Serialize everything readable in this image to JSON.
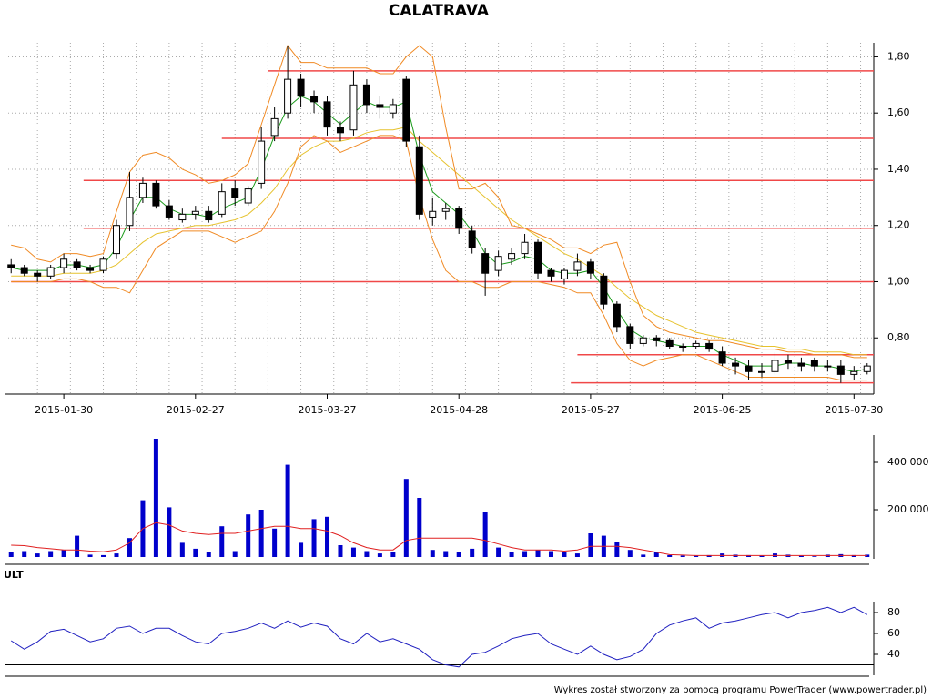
{
  "chart_data": [
    {
      "type": "candlestick",
      "title": "CALATRAVA",
      "categories": [
        null,
        null,
        null,
        null,
        "2015-01-30",
        null,
        null,
        null,
        null,
        null,
        null,
        null,
        null,
        null,
        "2015-02-27",
        null,
        null,
        null,
        null,
        null,
        null,
        null,
        null,
        null,
        "2015-03-27",
        null,
        null,
        null,
        null,
        null,
        null,
        null,
        null,
        null,
        "2015-04-28",
        null,
        null,
        null,
        null,
        null,
        null,
        null,
        null,
        null,
        "2015-05-27",
        null,
        null,
        null,
        null,
        null,
        null,
        null,
        null,
        null,
        "2015-06-25",
        null,
        null,
        null,
        null,
        null,
        null,
        null,
        null,
        null,
        "2015-07-30",
        null
      ],
      "open": [
        1.06,
        1.05,
        1.03,
        1.02,
        1.05,
        1.07,
        1.05,
        1.04,
        1.1,
        1.2,
        1.3,
        1.35,
        1.27,
        1.22,
        1.24,
        1.25,
        1.24,
        1.33,
        1.28,
        1.35,
        1.52,
        1.6,
        1.72,
        1.66,
        1.64,
        1.55,
        1.54,
        1.7,
        1.63,
        1.6,
        1.72,
        1.48,
        1.23,
        1.25,
        1.26,
        1.18,
        1.1,
        1.04,
        1.08,
        1.1,
        1.14,
        1.04,
        1.01,
        1.04,
        1.07,
        1.02,
        0.92,
        0.84,
        0.78,
        0.8,
        0.79,
        0.77,
        0.77,
        0.78,
        0.75,
        0.71,
        0.7,
        0.68,
        0.68,
        0.72,
        0.71,
        0.72,
        0.7,
        0.7,
        0.67,
        0.68
      ],
      "high": [
        1.08,
        1.06,
        1.04,
        1.06,
        1.1,
        1.08,
        1.06,
        1.09,
        1.22,
        1.39,
        1.37,
        1.36,
        1.29,
        1.26,
        1.27,
        1.27,
        1.35,
        1.36,
        1.34,
        1.55,
        1.62,
        1.84,
        1.74,
        1.68,
        1.66,
        1.57,
        1.75,
        1.72,
        1.66,
        1.65,
        1.73,
        1.52,
        1.3,
        1.28,
        1.27,
        1.2,
        1.12,
        1.11,
        1.12,
        1.17,
        1.15,
        1.05,
        1.05,
        1.1,
        1.08,
        1.03,
        0.93,
        0.85,
        0.81,
        0.81,
        0.8,
        0.78,
        0.79,
        0.79,
        0.77,
        0.73,
        0.72,
        0.71,
        0.75,
        0.74,
        0.73,
        0.73,
        0.72,
        0.72,
        0.7,
        0.71
      ],
      "low": [
        1.03,
        1.02,
        1.0,
        1.01,
        1.03,
        1.04,
        1.03,
        1.03,
        1.08,
        1.18,
        1.28,
        1.26,
        1.22,
        1.21,
        1.22,
        1.21,
        1.23,
        1.27,
        1.27,
        1.33,
        1.5,
        1.58,
        1.62,
        1.6,
        1.52,
        1.5,
        1.52,
        1.6,
        1.58,
        1.58,
        1.48,
        1.22,
        1.2,
        1.22,
        1.17,
        1.1,
        0.95,
        1.02,
        1.06,
        1.08,
        1.01,
        1.0,
        0.99,
        1.02,
        1.01,
        0.9,
        0.82,
        0.76,
        0.77,
        0.77,
        0.76,
        0.75,
        0.76,
        0.75,
        0.7,
        0.67,
        0.65,
        0.66,
        0.67,
        0.69,
        0.68,
        0.68,
        0.68,
        0.64,
        0.65,
        0.67
      ],
      "close": [
        1.05,
        1.03,
        1.02,
        1.05,
        1.08,
        1.05,
        1.04,
        1.08,
        1.2,
        1.3,
        1.35,
        1.27,
        1.23,
        1.24,
        1.25,
        1.22,
        1.32,
        1.3,
        1.33,
        1.5,
        1.58,
        1.72,
        1.66,
        1.64,
        1.55,
        1.53,
        1.7,
        1.63,
        1.62,
        1.63,
        1.5,
        1.24,
        1.25,
        1.26,
        1.19,
        1.12,
        1.03,
        1.09,
        1.1,
        1.14,
        1.03,
        1.02,
        1.04,
        1.07,
        1.03,
        0.92,
        0.84,
        0.78,
        0.8,
        0.79,
        0.77,
        0.77,
        0.78,
        0.76,
        0.71,
        0.7,
        0.68,
        0.68,
        0.72,
        0.71,
        0.7,
        0.7,
        0.7,
        0.67,
        0.68,
        0.7
      ],
      "overlays": [
        {
          "color": "#e6c22e",
          "values": [
            1.02,
            1.02,
            1.02,
            1.02,
            1.03,
            1.03,
            1.03,
            1.04,
            1.06,
            1.1,
            1.14,
            1.17,
            1.18,
            1.19,
            1.2,
            1.2,
            1.21,
            1.22,
            1.24,
            1.28,
            1.33,
            1.4,
            1.45,
            1.48,
            1.5,
            1.5,
            1.51,
            1.53,
            1.54,
            1.54,
            1.55,
            1.5,
            1.46,
            1.42,
            1.38,
            1.34,
            1.3,
            1.26,
            1.22,
            1.19,
            1.16,
            1.13,
            1.1,
            1.08,
            1.05,
            1.02,
            0.98,
            0.94,
            0.91,
            0.88,
            0.86,
            0.84,
            0.82,
            0.81,
            0.8,
            0.79,
            0.78,
            0.77,
            0.77,
            0.76,
            0.76,
            0.75,
            0.75,
            0.75,
            0.74,
            0.74
          ]
        },
        {
          "color": "#f08a24",
          "values": [
            1.13,
            1.12,
            1.08,
            1.07,
            1.1,
            1.1,
            1.09,
            1.1,
            1.25,
            1.39,
            1.45,
            1.46,
            1.44,
            1.4,
            1.38,
            1.35,
            1.36,
            1.38,
            1.42,
            1.56,
            1.7,
            1.84,
            1.78,
            1.78,
            1.76,
            1.76,
            1.76,
            1.76,
            1.74,
            1.74,
            1.8,
            1.84,
            1.8,
            1.55,
            1.33,
            1.33,
            1.35,
            1.3,
            1.2,
            1.19,
            1.17,
            1.15,
            1.12,
            1.12,
            1.1,
            1.13,
            1.14,
            1.0,
            0.88,
            0.84,
            0.82,
            0.81,
            0.8,
            0.79,
            0.79,
            0.78,
            0.77,
            0.76,
            0.76,
            0.75,
            0.75,
            0.74,
            0.74,
            0.74,
            0.73,
            0.73
          ]
        },
        {
          "color": "#f08a24",
          "values": [
            1.0,
            1.0,
            1.0,
            1.0,
            1.01,
            1.01,
            1.0,
            0.98,
            0.98,
            0.96,
            1.04,
            1.12,
            1.15,
            1.18,
            1.18,
            1.18,
            1.16,
            1.14,
            1.16,
            1.18,
            1.25,
            1.35,
            1.48,
            1.52,
            1.5,
            1.46,
            1.48,
            1.5,
            1.52,
            1.52,
            1.5,
            1.3,
            1.15,
            1.04,
            1.0,
            1.0,
            0.98,
            0.98,
            1.0,
            1.0,
            1.0,
            0.99,
            0.98,
            0.96,
            0.96,
            0.88,
            0.78,
            0.72,
            0.7,
            0.72,
            0.73,
            0.74,
            0.74,
            0.72,
            0.7,
            0.68,
            0.66,
            0.66,
            0.66,
            0.66,
            0.66,
            0.66,
            0.66,
            0.65,
            0.65,
            0.65
          ]
        },
        {
          "color": "#1a9a1a",
          "values": [
            1.05,
            1.04,
            1.04,
            1.04,
            1.06,
            1.06,
            1.05,
            1.06,
            1.12,
            1.22,
            1.3,
            1.3,
            1.26,
            1.24,
            1.24,
            1.23,
            1.26,
            1.28,
            1.3,
            1.4,
            1.52,
            1.62,
            1.66,
            1.64,
            1.6,
            1.56,
            1.6,
            1.64,
            1.62,
            1.62,
            1.64,
            1.45,
            1.32,
            1.28,
            1.24,
            1.18,
            1.1,
            1.06,
            1.07,
            1.09,
            1.08,
            1.04,
            1.03,
            1.03,
            1.04,
            0.98,
            0.9,
            0.83,
            0.8,
            0.79,
            0.78,
            0.77,
            0.77,
            0.77,
            0.74,
            0.72,
            0.7,
            0.7,
            0.7,
            0.71,
            0.71,
            0.7,
            0.7,
            0.69,
            0.68,
            0.69
          ]
        }
      ],
      "levels": [
        {
          "value": 1.75,
          "from_index": 19.5
        },
        {
          "value": 1.51,
          "from_index": 16
        },
        {
          "value": 1.36,
          "from_index": 5.5
        },
        {
          "value": 1.19,
          "from_index": 5.5
        },
        {
          "value": 1.0,
          "from_index": 0
        },
        {
          "value": 0.74,
          "from_index": 43
        },
        {
          "value": 0.64,
          "from_index": 42.5
        }
      ],
      "level_color": "#f04848",
      "ylim": [
        0.6,
        1.85
      ],
      "yticks": [
        {
          "value": 0.8,
          "label": "0,80"
        },
        {
          "value": 1.0,
          "label": "1,00"
        },
        {
          "value": 1.2,
          "label": "1,20"
        },
        {
          "value": 1.4,
          "label": "1,40"
        },
        {
          "value": 1.6,
          "label": "1,60"
        },
        {
          "value": 1.8,
          "label": "1,80"
        }
      ],
      "grid": true
    },
    {
      "type": "bar",
      "color": "#0000cc",
      "values": [
        20000,
        25000,
        15000,
        25000,
        30000,
        90000,
        10000,
        8000,
        15000,
        80000,
        240000,
        500000,
        210000,
        60000,
        35000,
        20000,
        130000,
        25000,
        180000,
        200000,
        120000,
        390000,
        60000,
        160000,
        170000,
        50000,
        40000,
        25000,
        15000,
        20000,
        330000,
        250000,
        30000,
        25000,
        20000,
        35000,
        190000,
        40000,
        20000,
        25000,
        30000,
        25000,
        20000,
        15000,
        100000,
        90000,
        65000,
        30000,
        10000,
        20000,
        8000,
        6000,
        5000,
        8000,
        15000,
        10000,
        8000,
        5000,
        15000,
        10000,
        5000,
        3000,
        10000,
        12000,
        8000,
        10000
      ],
      "average": {
        "color": "#e02020",
        "values": [
          50000,
          48000,
          40000,
          35000,
          30000,
          30000,
          25000,
          22000,
          30000,
          60000,
          120000,
          145000,
          135000,
          110000,
          100000,
          95000,
          100000,
          100000,
          110000,
          120000,
          130000,
          130000,
          120000,
          120000,
          110000,
          90000,
          60000,
          40000,
          30000,
          30000,
          70000,
          80000,
          80000,
          80000,
          80000,
          80000,
          70000,
          55000,
          40000,
          30000,
          30000,
          30000,
          25000,
          30000,
          45000,
          45000,
          45000,
          40000,
          30000,
          20000,
          10000,
          8000,
          6000,
          6000,
          6000,
          6000,
          6000,
          6000,
          6000,
          6000,
          6000,
          6000,
          6000,
          6000,
          6000,
          6000
        ]
      },
      "ylim": [
        0,
        500000
      ],
      "yticks": [
        {
          "value": 200000,
          "label": "200 000"
        },
        {
          "value": 400000,
          "label": "400 000"
        }
      ]
    },
    {
      "type": "line",
      "title": "ULT",
      "color": "#2020c0",
      "values": [
        53,
        45,
        52,
        62,
        64,
        58,
        52,
        55,
        65,
        67,
        60,
        65,
        65,
        58,
        52,
        50,
        60,
        62,
        65,
        70,
        65,
        72,
        66,
        70,
        67,
        55,
        50,
        60,
        52,
        55,
        50,
        45,
        35,
        30,
        28,
        40,
        42,
        48,
        55,
        58,
        60,
        50,
        45,
        40,
        48,
        40,
        35,
        38,
        45,
        60,
        68,
        72,
        75,
        65,
        70,
        72,
        75,
        78,
        80,
        75,
        80,
        82,
        85,
        80,
        85,
        78
      ],
      "levels": [
        30,
        70
      ],
      "ylim": [
        20,
        90
      ],
      "yticks": [
        40,
        60,
        80
      ]
    }
  ],
  "footer": "Wykres został stworzony za pomocą programu PowerTrader (www.powertrader.pl)"
}
